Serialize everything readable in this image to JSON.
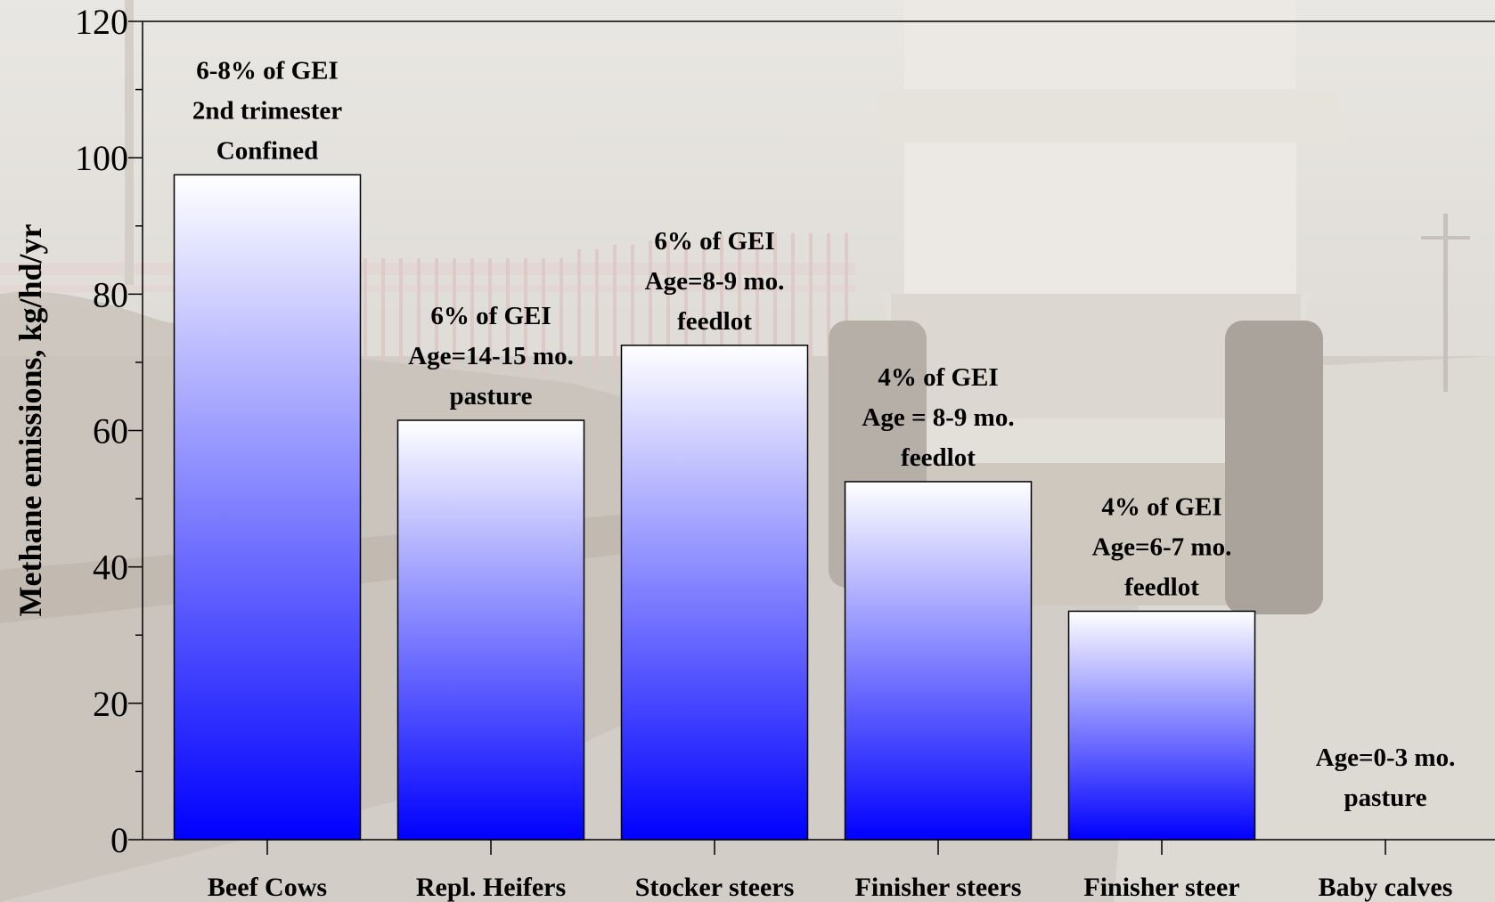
{
  "chart_data": {
    "type": "bar",
    "title": "",
    "xlabel": "",
    "ylabel": "Methane emissions, kg/hd/yr",
    "ylim": [
      0,
      120
    ],
    "yticks": [
      0,
      20,
      40,
      60,
      80,
      100,
      120
    ],
    "grid": false,
    "categories": [
      "Beef Cows",
      "Repl. Heifers",
      "Stocker steers",
      "Finisher steers",
      "Finisher steer",
      "Baby calves"
    ],
    "values": [
      97.5,
      61.5,
      72.5,
      52.5,
      33.5,
      null
    ],
    "annotations": [
      [
        "6-8% of GEI",
        "2nd trimester",
        "Confined"
      ],
      [
        "6% of GEI",
        "Age=14-15 mo.",
        "pasture"
      ],
      [
        "6% of GEI",
        "Age=8-9 mo.",
        "feedlot"
      ],
      [
        "4% of GEI",
        "Age = 8-9 mo.",
        "feedlot"
      ],
      [
        "4% of GEI",
        "Age=6-7 mo.",
        "feedlot"
      ],
      [
        "Age=0-3 mo.",
        "pasture"
      ]
    ],
    "bar_gradient": {
      "top": "#ffffff",
      "bottom": "#0000ff"
    },
    "bar_outline": "#000000",
    "background": "photo of feedlot with feed truck (faded)"
  }
}
